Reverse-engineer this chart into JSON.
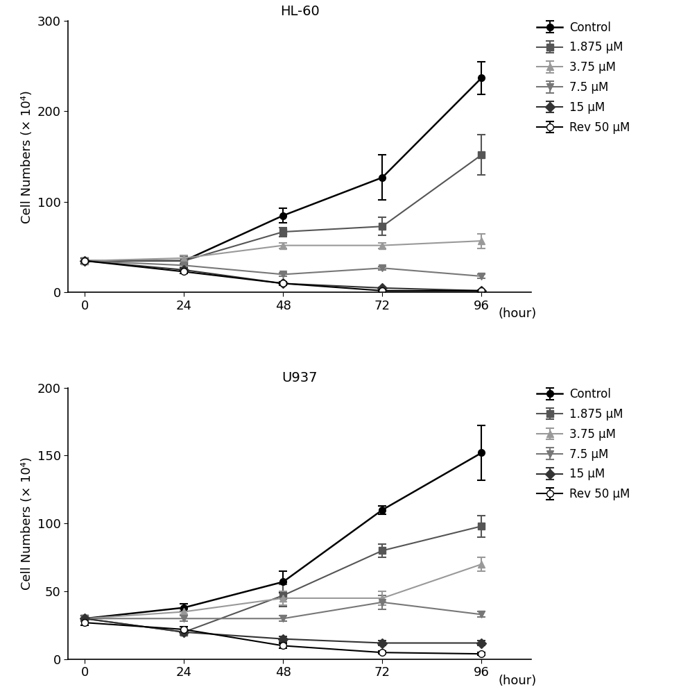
{
  "hl60": {
    "title": "HL-60",
    "x": [
      0,
      24,
      48,
      72,
      96
    ],
    "ylim": [
      0,
      300
    ],
    "yticks": [
      0,
      100,
      200,
      300
    ],
    "series": [
      {
        "label": "Control",
        "color": "#000000",
        "marker": "o",
        "markerfacecolor": "#000000",
        "markersize": 7,
        "linewidth": 1.8,
        "y": [
          35,
          35,
          85,
          127,
          237
        ],
        "yerr": [
          3,
          3,
          8,
          25,
          18
        ]
      },
      {
        "label": "1.875 μM",
        "color": "#555555",
        "marker": "s",
        "markerfacecolor": "#555555",
        "markersize": 7,
        "linewidth": 1.5,
        "y": [
          35,
          35,
          67,
          73,
          152
        ],
        "yerr": [
          3,
          5,
          5,
          10,
          22
        ]
      },
      {
        "label": "3.75 μM",
        "color": "#999999",
        "marker": "^",
        "markerfacecolor": "#999999",
        "markersize": 7,
        "linewidth": 1.5,
        "y": [
          35,
          38,
          52,
          52,
          57
        ],
        "yerr": [
          3,
          3,
          3,
          3,
          8
        ]
      },
      {
        "label": "7.5 μM",
        "color": "#777777",
        "marker": "v",
        "markerfacecolor": "#777777",
        "markersize": 7,
        "linewidth": 1.5,
        "y": [
          35,
          30,
          20,
          27,
          18
        ],
        "yerr": [
          3,
          2,
          2,
          2,
          2
        ]
      },
      {
        "label": "15 μM",
        "color": "#333333",
        "marker": "D",
        "markerfacecolor": "#333333",
        "markersize": 7,
        "linewidth": 1.5,
        "y": [
          35,
          25,
          10,
          5,
          2
        ],
        "yerr": [
          3,
          2,
          2,
          1,
          1
        ]
      },
      {
        "label": "Rev 50 μM",
        "color": "#000000",
        "marker": "o",
        "markerfacecolor": "#ffffff",
        "markersize": 7,
        "linewidth": 1.5,
        "y": [
          35,
          23,
          10,
          2,
          2
        ],
        "yerr": [
          3,
          2,
          2,
          1,
          1
        ]
      }
    ]
  },
  "u937": {
    "title": "U937",
    "x": [
      0,
      24,
      48,
      72,
      96
    ],
    "ylim": [
      0,
      200
    ],
    "yticks": [
      0,
      50,
      100,
      150,
      200
    ],
    "series": [
      {
        "label": "Control",
        "color": "#000000",
        "marker": "o",
        "markerfacecolor": "#000000",
        "markersize": 7,
        "linewidth": 1.8,
        "y": [
          30,
          38,
          57,
          110,
          152
        ],
        "yerr": [
          2,
          3,
          8,
          3,
          20
        ]
      },
      {
        "label": "1.875 μM",
        "color": "#555555",
        "marker": "s",
        "markerfacecolor": "#555555",
        "markersize": 7,
        "linewidth": 1.5,
        "y": [
          30,
          20,
          47,
          80,
          98
        ],
        "yerr": [
          2,
          2,
          8,
          5,
          8
        ]
      },
      {
        "label": "3.75 μM",
        "color": "#999999",
        "marker": "^",
        "markerfacecolor": "#999999",
        "markersize": 7,
        "linewidth": 1.5,
        "y": [
          30,
          35,
          45,
          45,
          70
        ],
        "yerr": [
          2,
          2,
          5,
          5,
          5
        ]
      },
      {
        "label": "7.5 μM",
        "color": "#777777",
        "marker": "v",
        "markerfacecolor": "#777777",
        "markersize": 7,
        "linewidth": 1.5,
        "y": [
          30,
          30,
          30,
          42,
          33
        ],
        "yerr": [
          2,
          2,
          2,
          5,
          2
        ]
      },
      {
        "label": "15 μM",
        "color": "#333333",
        "marker": "D",
        "markerfacecolor": "#333333",
        "markersize": 7,
        "linewidth": 1.5,
        "y": [
          30,
          20,
          15,
          12,
          12
        ],
        "yerr": [
          2,
          2,
          2,
          2,
          2
        ]
      },
      {
        "label": "Rev 50 μM",
        "color": "#000000",
        "marker": "o",
        "markerfacecolor": "#ffffff",
        "markersize": 7,
        "linewidth": 1.5,
        "y": [
          27,
          22,
          10,
          5,
          4
        ],
        "yerr": [
          2,
          2,
          2,
          1,
          1
        ]
      }
    ]
  },
  "ylabel": "Cell Numbers (× 10⁴)",
  "xlabel_suffix": "(hour)",
  "background_color": "#ffffff",
  "legend_fontsize": 12,
  "axis_fontsize": 13,
  "title_fontsize": 14
}
